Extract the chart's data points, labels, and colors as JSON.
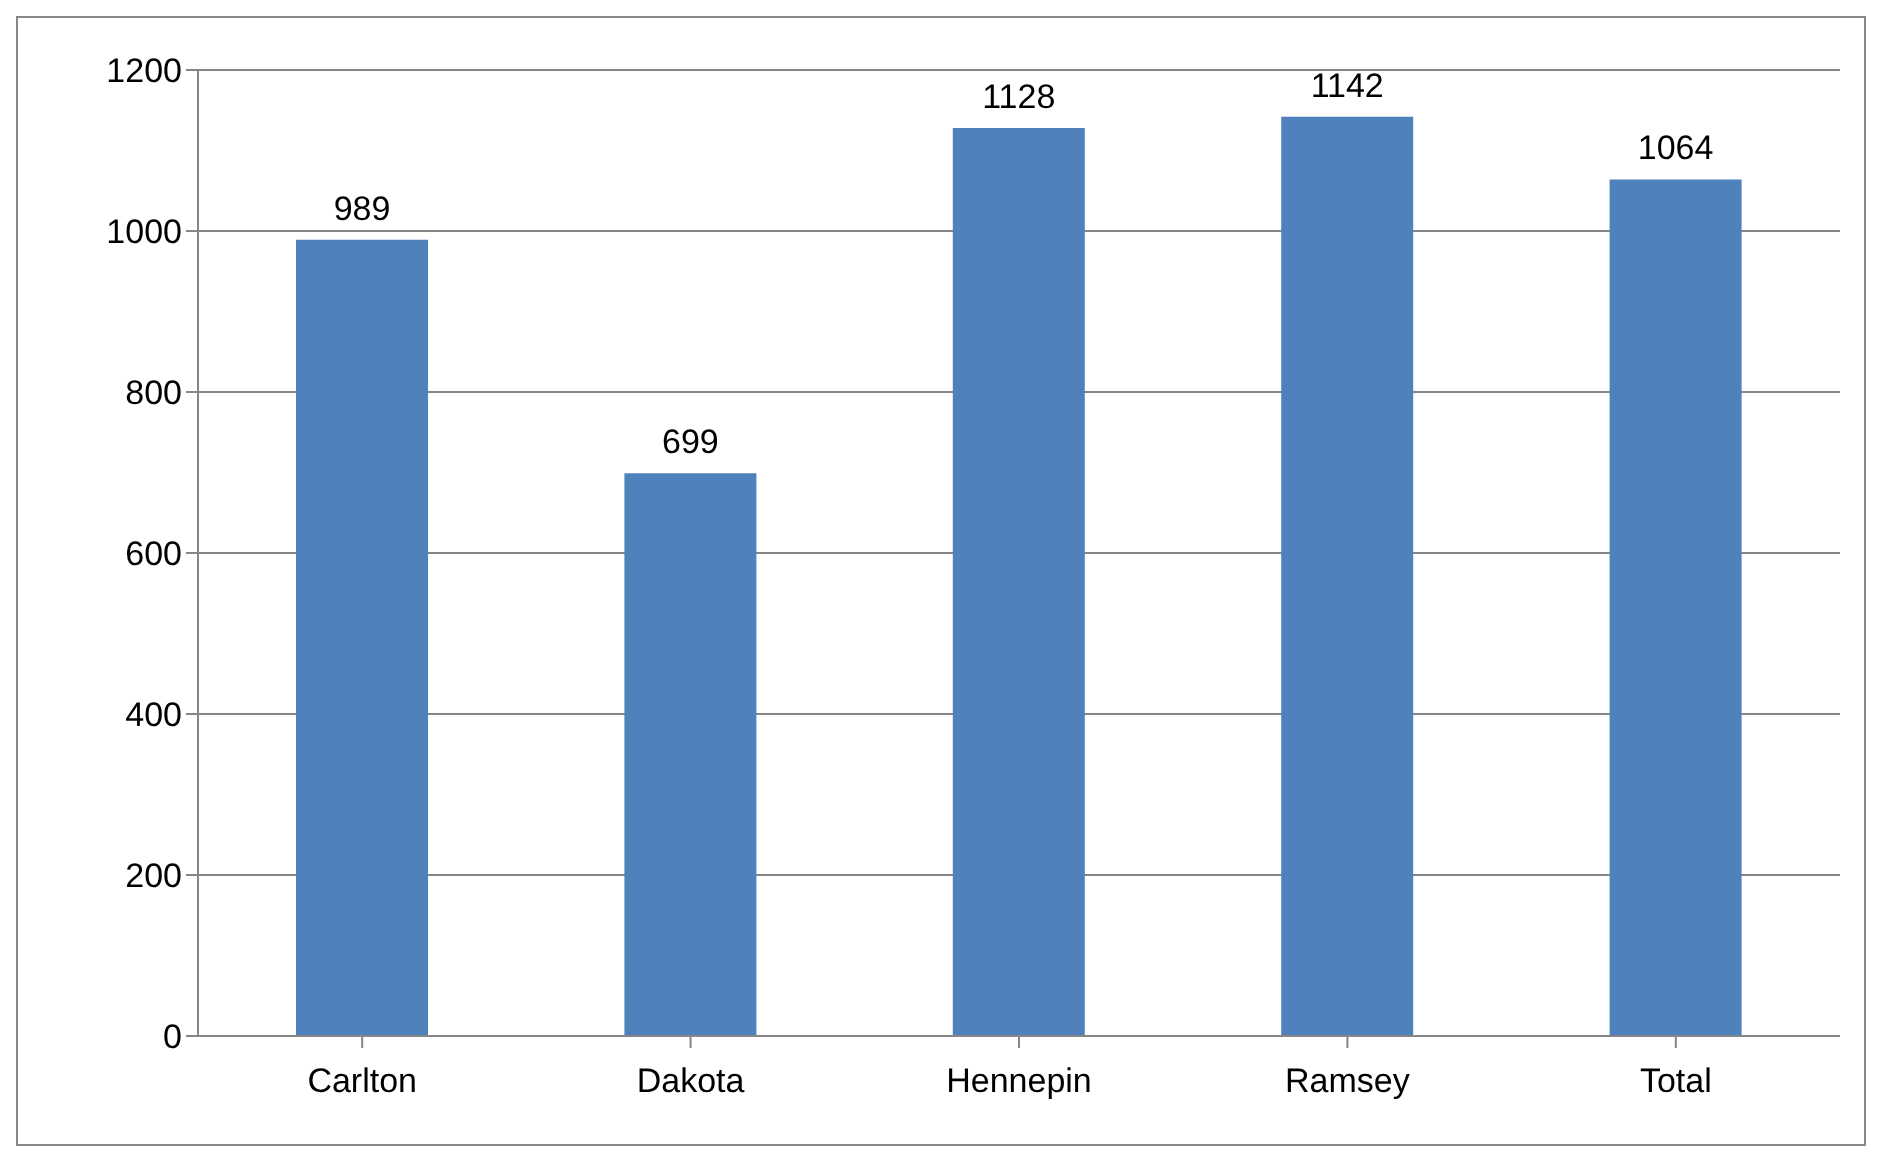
{
  "chart_data": {
    "type": "bar",
    "categories": [
      "Carlton",
      "Dakota",
      "Hennepin",
      "Ramsey",
      "Total"
    ],
    "values": [
      989,
      699,
      1128,
      1142,
      1064
    ],
    "color": "#4f81bd",
    "ylim": [
      0,
      1200
    ],
    "yticks": [
      0,
      200,
      400,
      600,
      800,
      1000,
      1200
    ],
    "grid": "y",
    "data_labels": true,
    "legend": false
  }
}
